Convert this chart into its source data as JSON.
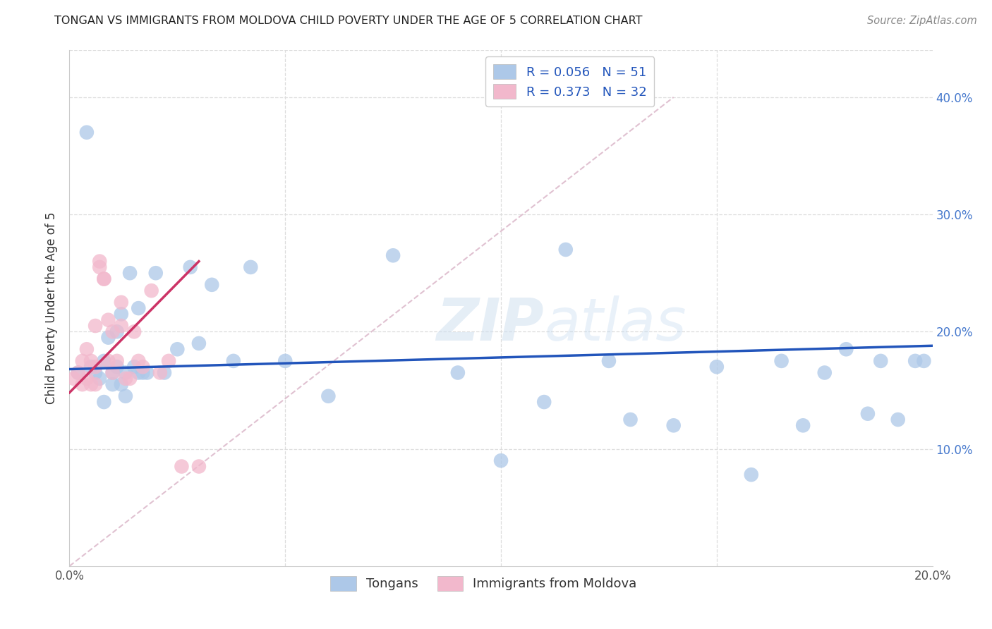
{
  "title": "TONGAN VS IMMIGRANTS FROM MOLDOVA CHILD POVERTY UNDER THE AGE OF 5 CORRELATION CHART",
  "source": "Source: ZipAtlas.com",
  "ylabel": "Child Poverty Under the Age of 5",
  "xlim": [
    0.0,
    0.2
  ],
  "ylim": [
    0.0,
    0.44
  ],
  "R_tongans": 0.056,
  "N_tongans": 51,
  "R_moldova": 0.373,
  "N_moldova": 32,
  "color_tongans": "#adc8e8",
  "color_moldova": "#f2b8cc",
  "line_color_tongans": "#2255bb",
  "line_color_moldova": "#cc3366",
  "legend_label_tongans": "Tongans",
  "legend_label_moldova": "Immigrants from Moldova",
  "tongans_x": [
    0.002,
    0.004,
    0.005,
    0.006,
    0.007,
    0.008,
    0.008,
    0.009,
    0.01,
    0.01,
    0.011,
    0.011,
    0.012,
    0.012,
    0.013,
    0.013,
    0.014,
    0.015,
    0.016,
    0.016,
    0.017,
    0.018,
    0.02,
    0.022,
    0.025,
    0.028,
    0.03,
    0.033,
    0.038,
    0.042,
    0.05,
    0.06,
    0.075,
    0.09,
    0.1,
    0.11,
    0.115,
    0.125,
    0.13,
    0.14,
    0.15,
    0.158,
    0.165,
    0.17,
    0.175,
    0.18,
    0.185,
    0.188,
    0.192,
    0.196,
    0.198
  ],
  "tongans_y": [
    0.165,
    0.37,
    0.17,
    0.165,
    0.16,
    0.175,
    0.14,
    0.195,
    0.155,
    0.165,
    0.2,
    0.17,
    0.215,
    0.155,
    0.165,
    0.145,
    0.25,
    0.17,
    0.165,
    0.22,
    0.165,
    0.165,
    0.25,
    0.165,
    0.185,
    0.255,
    0.19,
    0.24,
    0.175,
    0.255,
    0.175,
    0.145,
    0.265,
    0.165,
    0.09,
    0.14,
    0.27,
    0.175,
    0.125,
    0.12,
    0.17,
    0.078,
    0.175,
    0.12,
    0.165,
    0.185,
    0.13,
    0.175,
    0.125,
    0.175,
    0.175
  ],
  "moldova_x": [
    0.001,
    0.002,
    0.003,
    0.003,
    0.004,
    0.004,
    0.005,
    0.005,
    0.006,
    0.006,
    0.006,
    0.007,
    0.007,
    0.008,
    0.008,
    0.009,
    0.009,
    0.01,
    0.01,
    0.011,
    0.012,
    0.012,
    0.013,
    0.014,
    0.015,
    0.016,
    0.017,
    0.019,
    0.021,
    0.023,
    0.026,
    0.03
  ],
  "moldova_y": [
    0.16,
    0.165,
    0.155,
    0.175,
    0.16,
    0.185,
    0.155,
    0.175,
    0.155,
    0.17,
    0.205,
    0.255,
    0.26,
    0.245,
    0.245,
    0.21,
    0.175,
    0.165,
    0.2,
    0.175,
    0.205,
    0.225,
    0.16,
    0.16,
    0.2,
    0.175,
    0.17,
    0.235,
    0.165,
    0.175,
    0.085,
    0.085
  ],
  "tongans_line_x": [
    0.0,
    0.2
  ],
  "tongans_line_y": [
    0.168,
    0.188
  ],
  "moldova_line_x": [
    0.0,
    0.03
  ],
  "moldova_line_y": [
    0.148,
    0.26
  ],
  "ref_line_x": [
    0.0,
    0.14
  ],
  "ref_line_y": [
    0.0,
    0.4
  ]
}
